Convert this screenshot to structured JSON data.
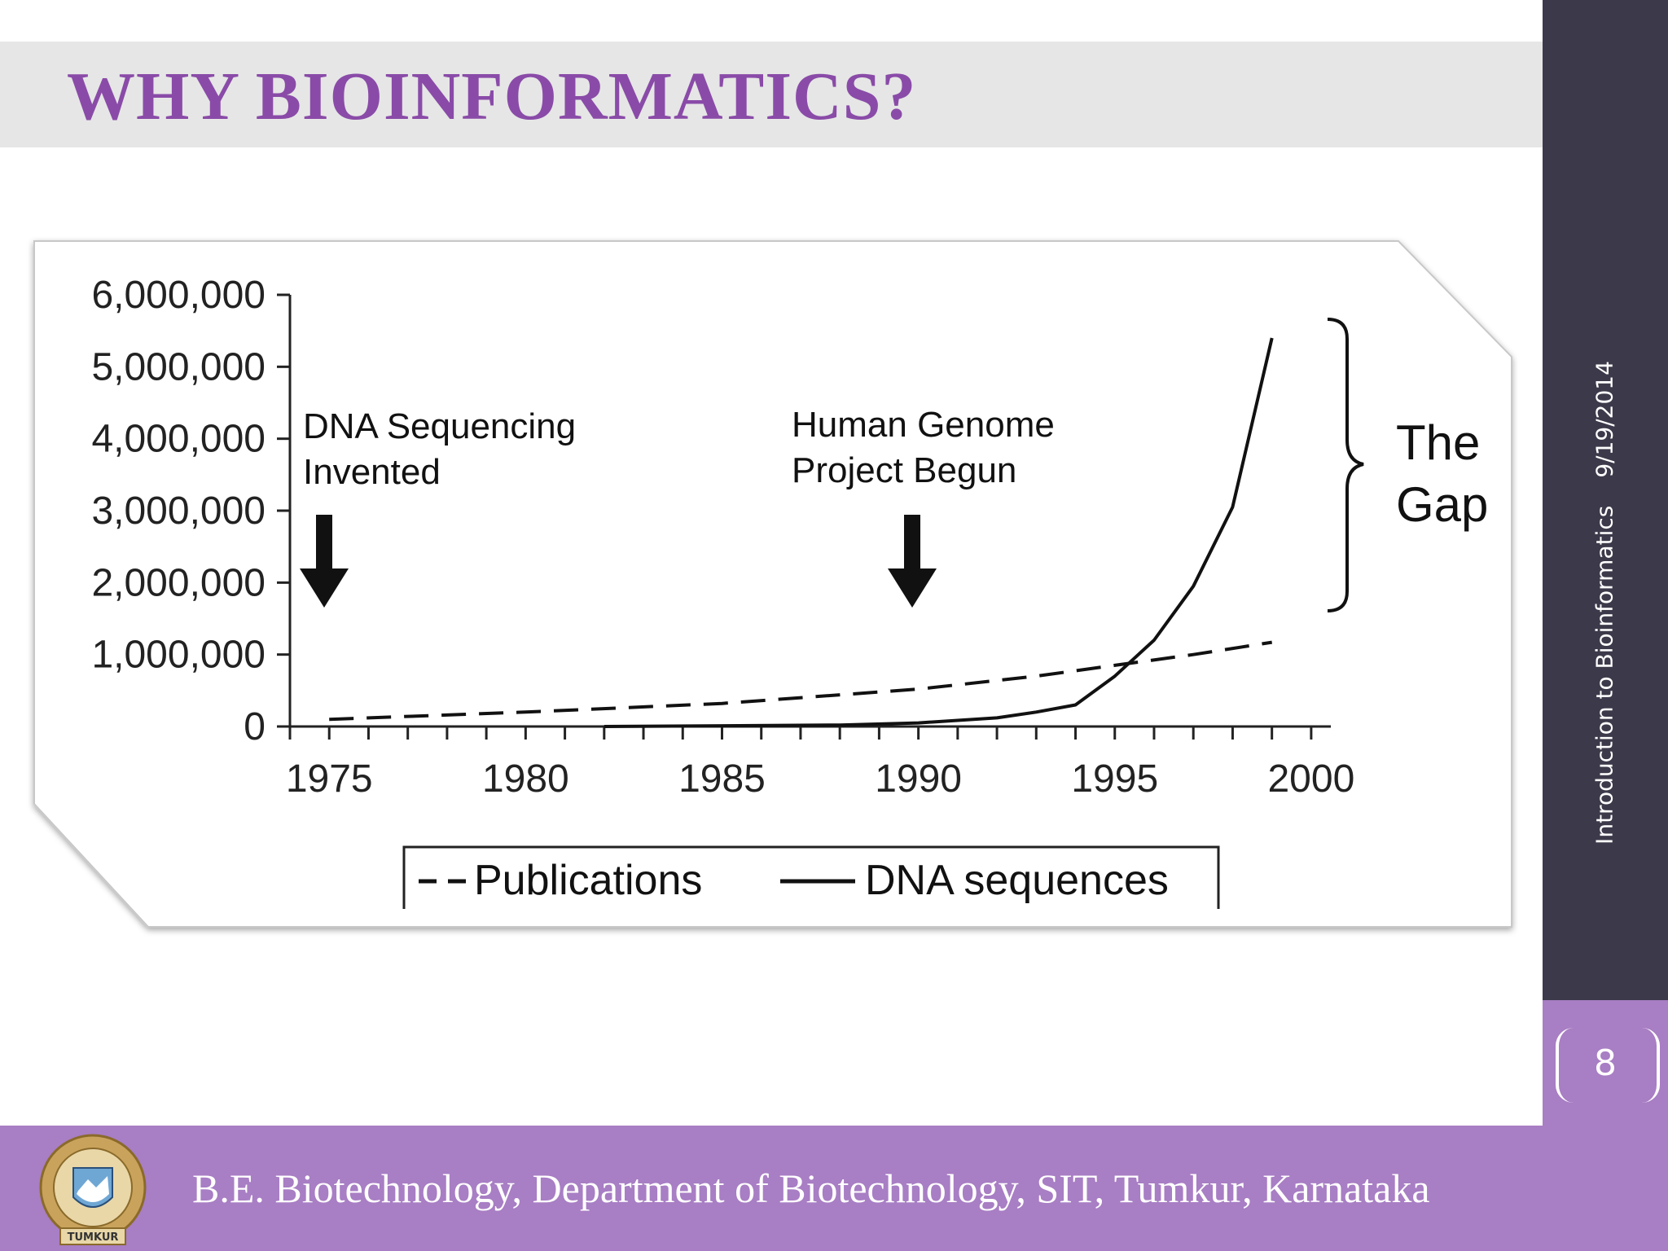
{
  "slide": {
    "title": "WHY BIOINFORMATICS?",
    "sidebar_text": "Introduction to Bioinformatics",
    "date": "9/19/2014",
    "page_number": "8",
    "footer_text": "B.E. Biotechnology, Department of Biotechnology, SIT, Tumkur, Karnataka",
    "logo_text": "TUMKUR"
  },
  "colors": {
    "accent": "#8a4ba8",
    "footer": "#a87ec4",
    "sidebar": "#3c3a4a",
    "title_band": "#e6e6e6"
  },
  "chart_data": {
    "type": "line",
    "title": "",
    "xlabel": "",
    "ylabel": "",
    "xlim": [
      1975,
      2000
    ],
    "ylim": [
      0,
      6000000
    ],
    "x_ticks": [
      "1975",
      "1980",
      "1985",
      "1990",
      "1995",
      "2000"
    ],
    "y_ticks": [
      "6,000,000",
      "5,000,000",
      "4,000,000",
      "3,000,000",
      "2,000,000",
      "1,000,000",
      "0"
    ],
    "legend_position": "bottom",
    "series": [
      {
        "name": "Publications",
        "style": "dashed",
        "x": [
          1975,
          1980,
          1985,
          1990,
          1993,
          1995,
          1997,
          1999
        ],
        "y": [
          100000,
          200000,
          320000,
          520000,
          700000,
          850000,
          1000000,
          1170000
        ]
      },
      {
        "name": "DNA sequences",
        "style": "solid",
        "x": [
          1982,
          1988,
          1990,
          1992,
          1993,
          1994,
          1995,
          1996,
          1997,
          1998,
          1999
        ],
        "y": [
          0,
          20000,
          50000,
          120000,
          200000,
          300000,
          700000,
          1200000,
          1950000,
          3050000,
          5400000
        ]
      }
    ],
    "annotations": [
      {
        "text_line1": "DNA Sequencing",
        "text_line2": "Invented",
        "x": 1976
      },
      {
        "text_line1": "Human Genome",
        "text_line2": "Project Begun",
        "x": 1990
      }
    ],
    "bracket_label": [
      "The",
      "Gap"
    ]
  }
}
